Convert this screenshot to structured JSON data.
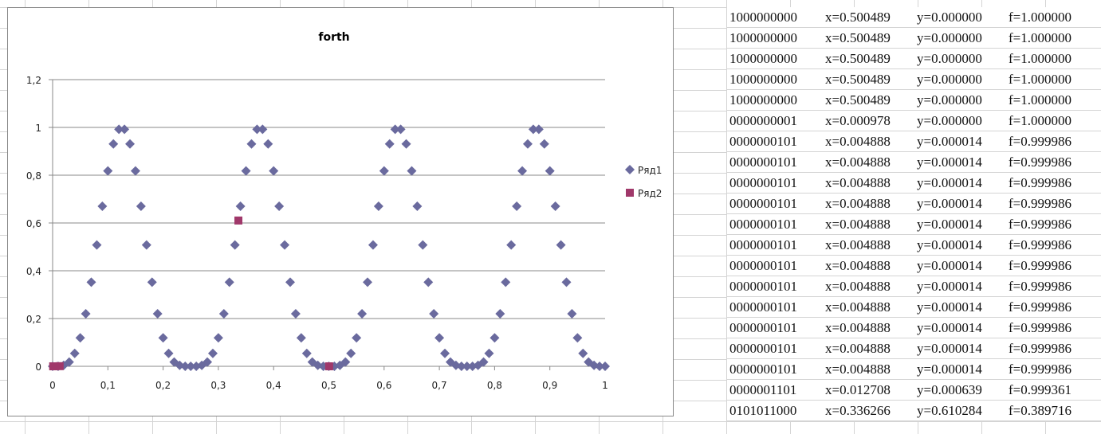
{
  "chart_data": {
    "type": "scatter",
    "title": "forth",
    "xlabel": "",
    "ylabel": "",
    "xlim": [
      0,
      1
    ],
    "ylim": [
      0,
      1.2
    ],
    "x_ticks": [
      "0",
      "0,1",
      "0,2",
      "0,3",
      "0,4",
      "0,5",
      "0,6",
      "0,7",
      "0,8",
      "0,9",
      "1"
    ],
    "y_ticks": [
      "0",
      "0,2",
      "0,4",
      "0,6",
      "0,8",
      "1",
      "1,2"
    ],
    "grid": "horizontal",
    "legend_position": "right",
    "series": [
      {
        "name": "Ряд1",
        "marker": "diamond",
        "color": "#6a6a9e",
        "x_start": 0,
        "x_step": 0.01,
        "y": [
          0,
          0,
          0.004,
          0.018,
          0.054,
          0.119,
          0.22,
          0.352,
          0.508,
          0.67,
          0.818,
          0.931,
          0.992,
          0.992,
          0.931,
          0.818,
          0.67,
          0.508,
          0.352,
          0.22,
          0.119,
          0.054,
          0.018,
          0.004,
          0,
          0,
          0,
          0.004,
          0.018,
          0.054,
          0.119,
          0.22,
          0.352,
          0.508,
          0.67,
          0.818,
          0.931,
          0.992,
          0.992,
          0.931,
          0.818,
          0.67,
          0.508,
          0.352,
          0.22,
          0.119,
          0.054,
          0.018,
          0.004,
          0,
          0,
          0,
          0.004,
          0.018,
          0.054,
          0.119,
          0.22,
          0.352,
          0.508,
          0.67,
          0.818,
          0.931,
          0.992,
          0.992,
          0.931,
          0.818,
          0.67,
          0.508,
          0.352,
          0.22,
          0.119,
          0.054,
          0.018,
          0.004,
          0,
          0,
          0,
          0.004,
          0.018,
          0.054,
          0.119,
          0.22,
          0.352,
          0.508,
          0.67,
          0.818,
          0.931,
          0.992,
          0.992,
          0.931,
          0.818,
          0.67,
          0.508,
          0.352,
          0.22,
          0.119,
          0.054,
          0.018,
          0.004,
          0,
          0
        ]
      },
      {
        "name": "Ряд2",
        "marker": "square",
        "color": "#a0386a",
        "points": [
          [
            0.500489,
            0
          ],
          [
            0.000978,
            0
          ],
          [
            0.004888,
            1.4e-05
          ],
          [
            0.012708,
            0.000639
          ],
          [
            0.336266,
            0.610284
          ]
        ]
      }
    ]
  },
  "table": {
    "rows": [
      [
        "1000000000",
        "x=0.500489",
        "y=0.000000",
        "f=1.000000"
      ],
      [
        "1000000000",
        "x=0.500489",
        "y=0.000000",
        "f=1.000000"
      ],
      [
        "1000000000",
        "x=0.500489",
        "y=0.000000",
        "f=1.000000"
      ],
      [
        "1000000000",
        "x=0.500489",
        "y=0.000000",
        "f=1.000000"
      ],
      [
        "1000000000",
        "x=0.500489",
        "y=0.000000",
        "f=1.000000"
      ],
      [
        "0000000001",
        "x=0.000978",
        "y=0.000000",
        "f=1.000000"
      ],
      [
        "0000000101",
        "x=0.004888",
        "y=0.000014",
        "f=0.999986"
      ],
      [
        "0000000101",
        "x=0.004888",
        "y=0.000014",
        "f=0.999986"
      ],
      [
        "0000000101",
        "x=0.004888",
        "y=0.000014",
        "f=0.999986"
      ],
      [
        "0000000101",
        "x=0.004888",
        "y=0.000014",
        "f=0.999986"
      ],
      [
        "0000000101",
        "x=0.004888",
        "y=0.000014",
        "f=0.999986"
      ],
      [
        "0000000101",
        "x=0.004888",
        "y=0.000014",
        "f=0.999986"
      ],
      [
        "0000000101",
        "x=0.004888",
        "y=0.000014",
        "f=0.999986"
      ],
      [
        "0000000101",
        "x=0.004888",
        "y=0.000014",
        "f=0.999986"
      ],
      [
        "0000000101",
        "x=0.004888",
        "y=0.000014",
        "f=0.999986"
      ],
      [
        "0000000101",
        "x=0.004888",
        "y=0.000014",
        "f=0.999986"
      ],
      [
        "0000000101",
        "x=0.004888",
        "y=0.000014",
        "f=0.999986"
      ],
      [
        "0000000101",
        "x=0.004888",
        "y=0.000014",
        "f=0.999986"
      ],
      [
        "0000001101",
        "x=0.012708",
        "y=0.000639",
        "f=0.999361"
      ],
      [
        "0101011000",
        "x=0.336266",
        "y=0.610284",
        "f=0.389716"
      ]
    ]
  }
}
